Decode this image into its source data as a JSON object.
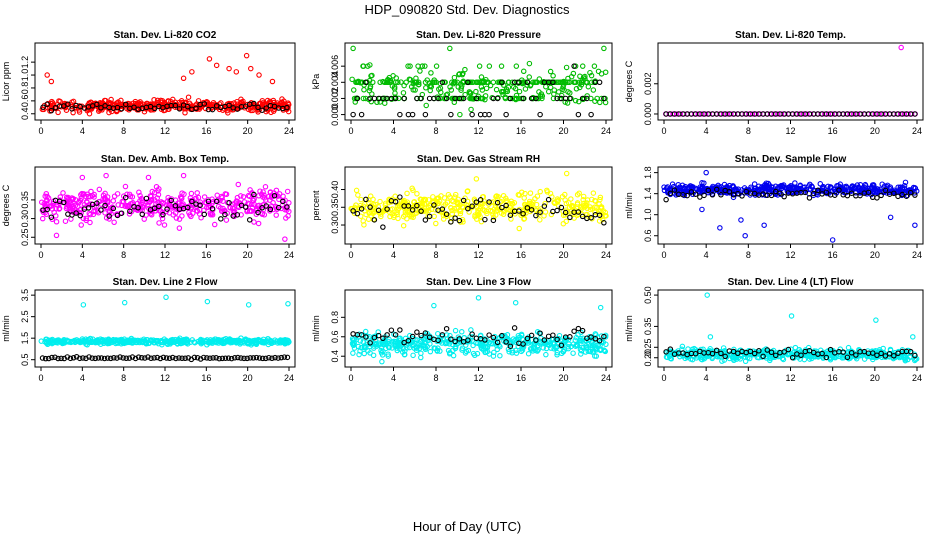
{
  "main_title": "HDP_090820  Std. Dev. Diagnostics",
  "x_label": "Hour of Day (UTC)",
  "chart_data": [
    {
      "type": "scatter",
      "title": "Stan. Dev. Li-820 CO2",
      "ylabel": "Licor ppm",
      "color": "#ff0000",
      "xlim": [
        0,
        24
      ],
      "ylim": [
        0.35,
        1.45
      ],
      "yticks": [
        0.4,
        0.6,
        0.8,
        1.0,
        1.2
      ],
      "ytick_labels": [
        "0.4",
        "0.6",
        "0.8",
        "1.0",
        "1.2"
      ],
      "xticks": [
        0,
        4,
        8,
        12,
        16,
        20,
        24
      ],
      "xtick_labels": [
        "0",
        "4",
        "8",
        "12",
        "16",
        "20",
        "24"
      ],
      "gen": {
        "n": 420,
        "base": 0.52,
        "spread": 0.09,
        "seed": 11
      },
      "outliers": [
        {
          "x": 0.6,
          "y": 1.0
        },
        {
          "x": 1.0,
          "y": 0.9
        },
        {
          "x": 13.8,
          "y": 0.95
        },
        {
          "x": 14.6,
          "y": 1.05
        },
        {
          "x": 16.3,
          "y": 1.25
        },
        {
          "x": 17.0,
          "y": 1.15
        },
        {
          "x": 18.2,
          "y": 1.1
        },
        {
          "x": 18.9,
          "y": 1.05
        },
        {
          "x": 19.9,
          "y": 1.3
        },
        {
          "x": 20.3,
          "y": 1.1
        },
        {
          "x": 21.1,
          "y": 1.0
        },
        {
          "x": 22.4,
          "y": 0.9
        }
      ],
      "black": {
        "n": 60,
        "base": 0.5,
        "spread": 0.06
      }
    },
    {
      "type": "scatter",
      "title": "Stan. Dev. Li-820 Pressure",
      "ylabel": "kPa",
      "color": "#00bb00",
      "xlim": [
        0,
        24
      ],
      "ylim": [
        -0.0003,
        0.0085
      ],
      "yticks": [
        0.0,
        0.002,
        0.004,
        0.006
      ],
      "ytick_labels": [
        "0.000",
        "0.002",
        "0.004",
        "0.006"
      ],
      "xticks": [
        0,
        4,
        8,
        12,
        16,
        20,
        24
      ],
      "xtick_labels": [
        "0",
        "4",
        "8",
        "12",
        "16",
        "20",
        "24"
      ],
      "gen": {
        "n": 380,
        "base": 0.0035,
        "spread": 0.0022,
        "seed": 23,
        "levels": [
          0,
          0.002,
          0.004,
          0.006
        ]
      },
      "outliers": [
        {
          "x": 0.2,
          "y": 0.0082
        },
        {
          "x": 9.3,
          "y": 0.0082
        },
        {
          "x": 23.8,
          "y": 0.0082
        }
      ],
      "black": {
        "n": 60,
        "base": 0.002,
        "spread": 0.0025,
        "levels": [
          0,
          0.002,
          0.004,
          0.006
        ]
      }
    },
    {
      "type": "scatter",
      "title": "Stan. Dev. Li-820 Temp.",
      "ylabel": "degrees C",
      "color": "#ff00ff",
      "xlim": [
        0,
        24
      ],
      "ylim": [
        -0.0002,
        0.0045
      ],
      "yticks": [
        0.0,
        0.002
      ],
      "ytick_labels": [
        "0.000",
        "0.002"
      ],
      "xticks": [
        0,
        4,
        8,
        12,
        16,
        20,
        24
      ],
      "xtick_labels": [
        "0",
        "4",
        "8",
        "12",
        "16",
        "20",
        "24"
      ],
      "gen": {
        "n": 0,
        "base": 0,
        "spread": 0,
        "seed": 31
      },
      "outliers": [
        {
          "x": 22.5,
          "y": 0.0044
        }
      ],
      "black": {
        "n": 60,
        "base": 0,
        "spread": 0
      },
      "flat": {
        "y": 0,
        "n": 70
      }
    },
    {
      "type": "scatter",
      "title": "Stan. Dev. Amb. Box Temp.",
      "ylabel": "degrees C",
      "color": "#ff00ff",
      "xlim": [
        0,
        24
      ],
      "ylim": [
        0.24,
        0.43
      ],
      "yticks": [
        0.25,
        0.3,
        0.35
      ],
      "ytick_labels": [
        "0.25",
        "0.30",
        "0.35"
      ],
      "xticks": [
        0,
        4,
        8,
        12,
        16,
        20,
        24
      ],
      "xtick_labels": [
        "0",
        "4",
        "8",
        "12",
        "16",
        "20",
        "24"
      ],
      "gen": {
        "n": 430,
        "base": 0.335,
        "spread": 0.04,
        "seed": 41
      },
      "outliers": [
        {
          "x": 4.0,
          "y": 0.41
        },
        {
          "x": 6.3,
          "y": 0.415
        },
        {
          "x": 10.4,
          "y": 0.41
        },
        {
          "x": 13.8,
          "y": 0.415
        },
        {
          "x": 1.5,
          "y": 0.255
        },
        {
          "x": 23.6,
          "y": 0.245
        }
      ],
      "black": {
        "n": 60,
        "base": 0.33,
        "spread": 0.03
      }
    },
    {
      "type": "scatter",
      "title": "Stan. Dev. Gas Stream RH",
      "ylabel": "percent",
      "color": "#ffff00",
      "xlim": [
        0,
        24
      ],
      "ylim": [
        0.255,
        0.455
      ],
      "yticks": [
        0.3,
        0.35,
        0.4
      ],
      "ytick_labels": [
        "0.30",
        "0.35",
        "0.40"
      ],
      "xticks": [
        0,
        4,
        8,
        12,
        16,
        20,
        24
      ],
      "xtick_labels": [
        "0",
        "4",
        "8",
        "12",
        "16",
        "20",
        "24"
      ],
      "gen": {
        "n": 430,
        "base": 0.35,
        "spread": 0.04,
        "seed": 53
      },
      "outliers": [
        {
          "x": 20.3,
          "y": 0.445
        },
        {
          "x": 11.8,
          "y": 0.43
        }
      ],
      "black": {
        "n": 60,
        "base": 0.34,
        "spread": 0.035
      }
    },
    {
      "type": "scatter",
      "title": "Stan. Dev. Sample Flow",
      "ylabel": "ml/min",
      "color": "#0000ee",
      "xlim": [
        0,
        24
      ],
      "ylim": [
        0.5,
        1.85
      ],
      "yticks": [
        0.6,
        1.0,
        1.4,
        1.8
      ],
      "ytick_labels": [
        "0.6",
        "1.0",
        "1.4",
        "1.8"
      ],
      "xticks": [
        0,
        4,
        8,
        12,
        16,
        20,
        24
      ],
      "xtick_labels": [
        "0",
        "4",
        "8",
        "12",
        "16",
        "20",
        "24"
      ],
      "gen": {
        "n": 430,
        "base": 1.48,
        "spread": 0.1,
        "seed": 67
      },
      "outliers": [
        {
          "x": 3.6,
          "y": 1.1
        },
        {
          "x": 4.0,
          "y": 1.8
        },
        {
          "x": 5.3,
          "y": 0.75
        },
        {
          "x": 7.3,
          "y": 0.9
        },
        {
          "x": 7.7,
          "y": 0.6
        },
        {
          "x": 9.5,
          "y": 0.8
        },
        {
          "x": 16.0,
          "y": 0.52
        },
        {
          "x": 23.8,
          "y": 0.8
        },
        {
          "x": 21.5,
          "y": 0.95
        }
      ],
      "black": {
        "n": 60,
        "base": 1.38,
        "spread": 0.08
      }
    },
    {
      "type": "scatter",
      "title": "Stan. Dev. Line 2 Flow",
      "ylabel": "ml/min",
      "color": "#00eeee",
      "xlim": [
        0,
        24
      ],
      "ylim": [
        0.3,
        3.6
      ],
      "yticks": [
        0.5,
        1.5,
        2.5,
        3.5
      ],
      "ytick_labels": [
        "0.5",
        "1.5",
        "2.5",
        "3.5"
      ],
      "xticks": [
        0,
        4,
        8,
        12,
        16,
        20,
        24
      ],
      "xtick_labels": [
        "0",
        "4",
        "8",
        "12",
        "16",
        "20",
        "24"
      ],
      "gen": {
        "n": 430,
        "base": 1.35,
        "spread": 0.12,
        "seed": 79
      },
      "outliers": [
        {
          "x": 4.1,
          "y": 3.05
        },
        {
          "x": 8.1,
          "y": 3.15
        },
        {
          "x": 12.1,
          "y": 3.4
        },
        {
          "x": 16.1,
          "y": 3.2
        },
        {
          "x": 20.1,
          "y": 3.05
        },
        {
          "x": 23.9,
          "y": 3.1
        }
      ],
      "black": {
        "n": 80,
        "base": 0.58,
        "spread": 0.05
      }
    },
    {
      "type": "scatter",
      "title": "Stan. Dev. Line 3 Flow",
      "ylabel": "ml/min",
      "color": "#00eeee",
      "xlim": [
        0,
        24
      ],
      "ylim": [
        0.32,
        1.05
      ],
      "yticks": [
        0.4,
        0.6,
        0.8
      ],
      "ytick_labels": [
        "0.4",
        "0.6",
        "0.8"
      ],
      "xticks": [
        0,
        4,
        8,
        12,
        16,
        20,
        24
      ],
      "xtick_labels": [
        "0",
        "4",
        "8",
        "12",
        "16",
        "20",
        "24"
      ],
      "gen": {
        "n": 450,
        "base": 0.52,
        "spread": 0.11,
        "seed": 97
      },
      "outliers": [
        {
          "x": 12.0,
          "y": 1.0
        },
        {
          "x": 15.5,
          "y": 0.95
        },
        {
          "x": 7.8,
          "y": 0.92
        },
        {
          "x": 23.5,
          "y": 0.9
        }
      ],
      "black": {
        "n": 60,
        "base": 0.6,
        "spread": 0.1
      }
    },
    {
      "type": "scatter",
      "title": "Stan. Dev. Line 4 (LT) Flow",
      "ylabel": "ml/min",
      "color": "#00eeee",
      "xlim": [
        0,
        24
      ],
      "ylim": [
        0.17,
        0.51
      ],
      "yticks": [
        0.2,
        0.25,
        0.35,
        0.5
      ],
      "ytick_labels": [
        "0.20",
        "0.25",
        "0.35",
        "0.50"
      ],
      "xticks": [
        0,
        4,
        8,
        12,
        16,
        20,
        24
      ],
      "xtick_labels": [
        "0",
        "4",
        "8",
        "12",
        "16",
        "20",
        "24"
      ],
      "gen": {
        "n": 430,
        "base": 0.215,
        "spread": 0.025,
        "seed": 103
      },
      "outliers": [
        {
          "x": 4.1,
          "y": 0.5
        },
        {
          "x": 12.1,
          "y": 0.4
        },
        {
          "x": 20.1,
          "y": 0.38
        },
        {
          "x": 23.6,
          "y": 0.3
        },
        {
          "x": 4.4,
          "y": 0.3
        }
      ],
      "black": {
        "n": 60,
        "base": 0.22,
        "spread": 0.02
      }
    }
  ]
}
